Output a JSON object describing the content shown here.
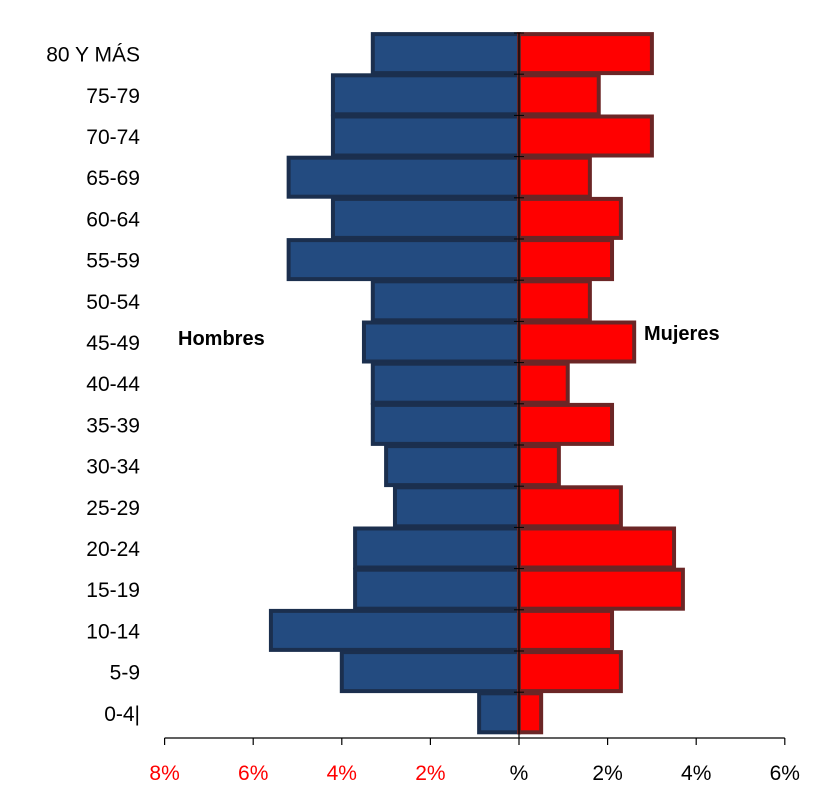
{
  "chart_data": {
    "type": "bar",
    "orientation": "horizontal",
    "layout": "population-pyramid",
    "categories": [
      "80 Y MÁS",
      "75-79",
      "70-74",
      "65-69",
      "60-64",
      "55-59",
      "50-54",
      "45-49",
      "40-44",
      "35-39",
      "30-34",
      "25-29",
      "20-24",
      "15-19",
      "10-14",
      "5-9",
      "0-4|"
    ],
    "series": [
      {
        "name": "Hombres",
        "side": "left",
        "color": "#234b80",
        "edge_color": "#1b2f4e",
        "values": [
          3.3,
          4.2,
          4.2,
          5.2,
          4.2,
          5.2,
          3.3,
          3.5,
          3.3,
          3.3,
          3.0,
          2.8,
          3.7,
          3.7,
          5.6,
          4.0,
          0.9
        ]
      },
      {
        "name": "Mujeres",
        "side": "right",
        "color": "#ff0000",
        "edge_color": "#6b2626",
        "values": [
          3.0,
          1.8,
          3.0,
          1.6,
          2.3,
          2.1,
          1.6,
          2.6,
          1.1,
          2.1,
          0.9,
          2.3,
          3.5,
          3.7,
          2.1,
          2.3,
          0.5
        ]
      }
    ],
    "x_ticks": [
      {
        "value": -8,
        "label": "8%",
        "color": "#ff0000"
      },
      {
        "value": -6,
        "label": "6%",
        "color": "#ff0000"
      },
      {
        "value": -4,
        "label": "4%",
        "color": "#ff0000"
      },
      {
        "value": -2,
        "label": "2%",
        "color": "#ff0000"
      },
      {
        "value": 0,
        "label": "%",
        "color": "#000000"
      },
      {
        "value": 2,
        "label": "2%",
        "color": "#000000"
      },
      {
        "value": 4,
        "label": "4%",
        "color": "#000000"
      },
      {
        "value": 6,
        "label": "6%",
        "color": "#000000"
      }
    ],
    "xlim": [
      -8,
      6
    ],
    "grid": false,
    "title": "",
    "xlabel": "",
    "ylabel": ""
  }
}
